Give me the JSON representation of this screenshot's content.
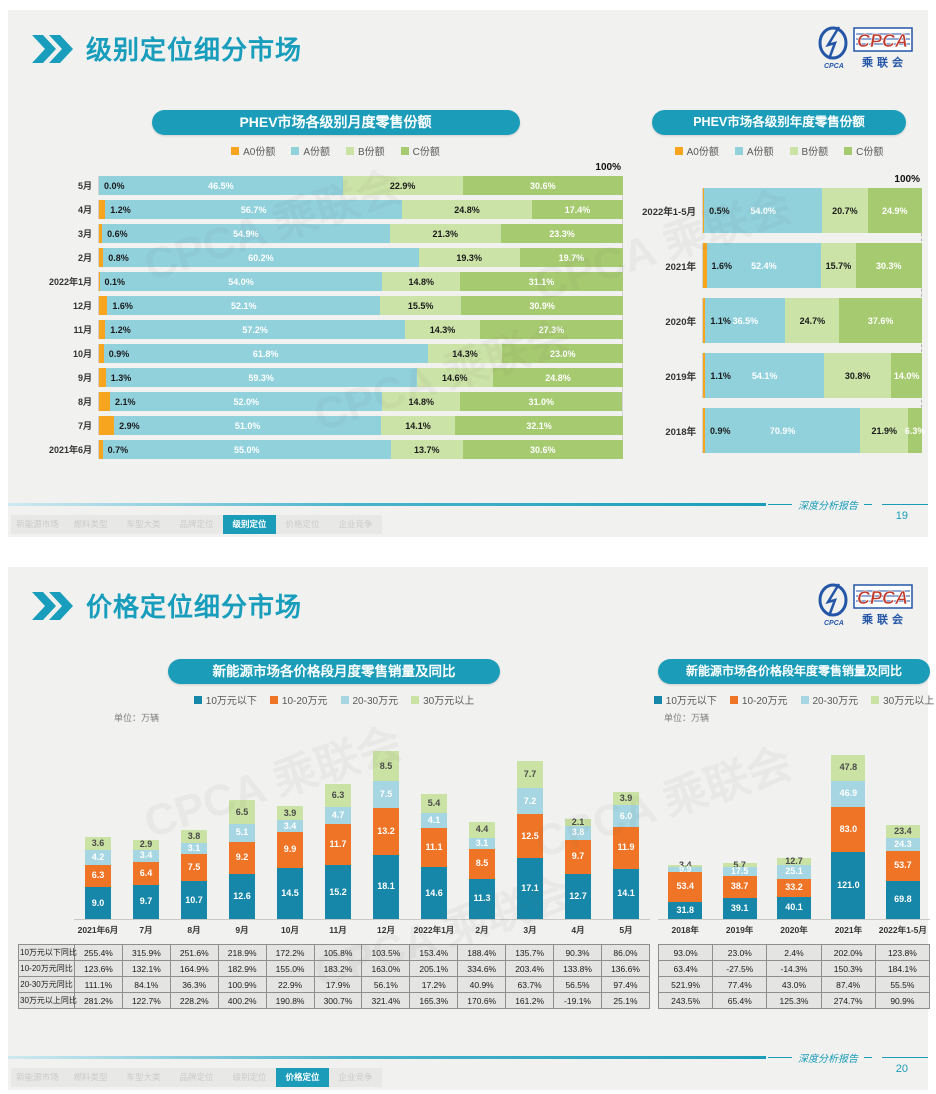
{
  "colors": {
    "accent": "#1B9DBA",
    "logo_blue": "#2456A8",
    "logo_red": "#C03A2B"
  },
  "logo": {
    "name": "CPCA",
    "sub": "乘联会"
  },
  "slides": [
    {
      "title": "级别定位细分市场",
      "page": "19",
      "active_nav": 4
    },
    {
      "title": "价格定位细分市场",
      "page": "20",
      "active_nav": 5
    }
  ],
  "footer": {
    "nav": [
      "新能源市场",
      "燃料类型",
      "车型大类",
      "品牌定位",
      "级别定位",
      "价格定位",
      "企业竞争"
    ],
    "report_label": "深度分析报告"
  },
  "chart_data": [
    {
      "id": "phev-monthly-share",
      "type": "bar",
      "subtype": "stacked-horizontal-100pct",
      "title": "PHEV市场各级别月度零售份额",
      "series_names": [
        "A0份额",
        "A份额",
        "B份额",
        "C份额"
      ],
      "colors": [
        "#F7A41F",
        "#90D1DC",
        "#CBE3A6",
        "#A6CA6F"
      ],
      "axis_max_label": "100%",
      "unit": "%",
      "categories": [
        "5月",
        "4月",
        "3月",
        "2月",
        "2022年1月",
        "12月",
        "11月",
        "10月",
        "9月",
        "8月",
        "7月",
        "2021年6月"
      ],
      "values": [
        [
          0.0,
          46.5,
          22.9,
          30.6
        ],
        [
          1.2,
          56.7,
          24.8,
          17.4
        ],
        [
          0.6,
          54.9,
          21.3,
          23.3
        ],
        [
          0.8,
          60.2,
          19.3,
          19.7
        ],
        [
          0.1,
          54.0,
          14.8,
          31.1
        ],
        [
          1.6,
          52.1,
          15.5,
          30.9
        ],
        [
          1.2,
          57.2,
          14.3,
          27.3
        ],
        [
          0.9,
          61.8,
          14.3,
          23.0
        ],
        [
          1.3,
          59.3,
          14.6,
          24.8
        ],
        [
          2.1,
          52.0,
          14.8,
          31.0
        ],
        [
          2.9,
          51.0,
          14.1,
          32.1
        ],
        [
          0.7,
          55.0,
          13.7,
          30.6
        ]
      ]
    },
    {
      "id": "phev-yearly-share",
      "type": "bar",
      "subtype": "stacked-horizontal-100pct",
      "title": "PHEV市场各级别年度零售份额",
      "series_names": [
        "A0份额",
        "A份额",
        "B份额",
        "C份额"
      ],
      "colors": [
        "#F7A41F",
        "#90D1DC",
        "#CBE3A6",
        "#A6CA6F"
      ],
      "axis_max_label": "100%",
      "unit": "%",
      "categories": [
        "2022年1-5月",
        "2021年",
        "2020年",
        "2019年",
        "2018年"
      ],
      "values": [
        [
          0.5,
          54.0,
          20.7,
          24.9
        ],
        [
          1.6,
          52.4,
          15.7,
          30.3
        ],
        [
          1.1,
          36.5,
          24.7,
          37.6
        ],
        [
          1.1,
          54.1,
          30.8,
          14.0
        ],
        [
          0.9,
          70.9,
          21.9,
          6.3
        ]
      ]
    },
    {
      "id": "nev-price-monthly-sales",
      "type": "bar",
      "subtype": "stacked-column",
      "title": "新能源市场各价格段月度零售销量及同比",
      "unit_label": "单位：万辆",
      "series_names": [
        "10万元以下",
        "10-20万元",
        "20-30万元",
        "30万元以上"
      ],
      "colors": [
        "#1787A9",
        "#EF7425",
        "#A5D6E2",
        "#CAE2A3"
      ],
      "categories": [
        "2021年6月",
        "7月",
        "8月",
        "9月",
        "10月",
        "11月",
        "12月",
        "2022年1月",
        "2月",
        "3月",
        "4月",
        "5月"
      ],
      "values": [
        [
          9.0,
          6.3,
          4.2,
          3.6
        ],
        [
          9.7,
          6.4,
          3.4,
          2.9
        ],
        [
          10.7,
          7.5,
          3.1,
          3.8
        ],
        [
          12.6,
          9.2,
          5.1,
          6.5
        ],
        [
          14.5,
          9.9,
          3.4,
          3.9
        ],
        [
          15.2,
          11.7,
          4.7,
          6.3
        ],
        [
          18.1,
          13.2,
          7.5,
          8.5
        ],
        [
          14.6,
          11.1,
          4.1,
          5.4
        ],
        [
          11.3,
          8.5,
          3.1,
          4.4
        ],
        [
          17.1,
          12.5,
          7.2,
          7.7
        ],
        [
          12.7,
          9.7,
          3.8,
          2.1
        ],
        [
          14.1,
          11.9,
          6.0,
          3.9
        ]
      ],
      "yoy_table": {
        "row_headers": [
          "10万元以下同比",
          "10-20万元同比",
          "20-30万元同比",
          "30万元以上同比"
        ],
        "rows": [
          [
            "255.4%",
            "315.9%",
            "251.6%",
            "218.9%",
            "172.2%",
            "105.8%",
            "103.5%",
            "153.4%",
            "188.4%",
            "135.7%",
            "90.3%",
            "86.0%"
          ],
          [
            "123.6%",
            "132.1%",
            "164.9%",
            "182.9%",
            "155.0%",
            "183.2%",
            "163.0%",
            "205.1%",
            "334.6%",
            "203.4%",
            "133.8%",
            "136.6%"
          ],
          [
            "111.1%",
            "84.1%",
            "36.3%",
            "100.9%",
            "22.9%",
            "17.9%",
            "56.1%",
            "17.2%",
            "40.9%",
            "63.7%",
            "56.5%",
            "97.4%"
          ],
          [
            "281.2%",
            "122.7%",
            "228.2%",
            "400.2%",
            "190.8%",
            "300.7%",
            "321.4%",
            "165.3%",
            "170.6%",
            "161.2%",
            "-19.1%",
            "25.1%"
          ]
        ]
      }
    },
    {
      "id": "nev-price-yearly-sales",
      "type": "bar",
      "subtype": "stacked-column",
      "title": "新能源市场各价格段年度零售销量及同比",
      "unit_label": "单位：万辆",
      "series_names": [
        "10万元以下",
        "10-20万元",
        "20-30万元",
        "30万元以上"
      ],
      "colors": [
        "#1787A9",
        "#EF7425",
        "#A5D6E2",
        "#CAE2A3"
      ],
      "categories": [
        "2018年",
        "2019年",
        "2020年",
        "2021年",
        "2022年1-5月"
      ],
      "values": [
        [
          31.8,
          53.4,
          9.9,
          3.4
        ],
        [
          39.1,
          38.7,
          17.5,
          5.7
        ],
        [
          40.1,
          33.2,
          25.1,
          12.7
        ],
        [
          121.0,
          83.0,
          46.9,
          47.8
        ],
        [
          69.8,
          53.7,
          24.3,
          23.4
        ]
      ],
      "yoy_table": {
        "row_headers": null,
        "rows": [
          [
            "93.0%",
            "23.0%",
            "2.4%",
            "202.0%",
            "123.8%"
          ],
          [
            "63.4%",
            "-27.5%",
            "-14.3%",
            "150.3%",
            "184.1%"
          ],
          [
            "521.9%",
            "77.4%",
            "43.0%",
            "87.4%",
            "55.5%"
          ],
          [
            "243.5%",
            "65.4%",
            "125.3%",
            "274.7%",
            "90.9%"
          ]
        ]
      }
    }
  ]
}
